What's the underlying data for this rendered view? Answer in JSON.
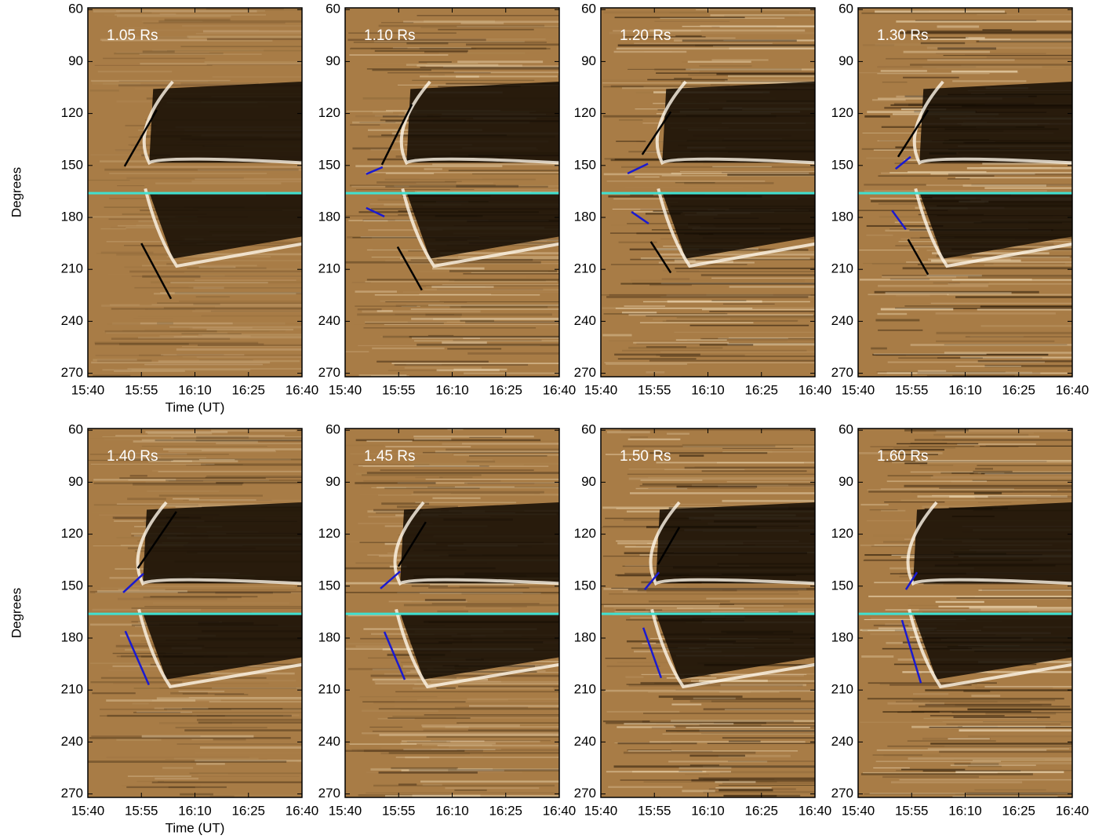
{
  "chart_data": [
    {
      "type": "image",
      "label": "1.05 Rs",
      "ylabel": "Degrees",
      "xlabel": "Time (UT)",
      "xlim": [
        0,
        60
      ],
      "ylim": [
        59,
        272
      ],
      "xticks": [
        {
          "value": 0,
          "label": "15:40"
        },
        {
          "value": 15,
          "label": "15:55"
        },
        {
          "value": 30,
          "label": "16:10"
        },
        {
          "value": 45,
          "label": "16:25"
        },
        {
          "value": 60,
          "label": "16:40"
        }
      ],
      "yticks": [
        60,
        90,
        120,
        150,
        180,
        210,
        240,
        270
      ],
      "reference": 166,
      "reference_color": "#40e0d0",
      "segments": [
        {
          "color": "#000000",
          "x": [
            10.3,
            19.3
          ],
          "values": [
            150.5,
            118
          ]
        },
        {
          "color": "#000000",
          "x": [
            15,
            23.3
          ],
          "values": [
            195,
            227
          ]
        }
      ]
    },
    {
      "type": "image",
      "label": "1.10 Rs",
      "xlim": [
        0,
        60
      ],
      "ylim": [
        59,
        272
      ],
      "xticks": [
        {
          "value": 0,
          "label": "15:40"
        },
        {
          "value": 15,
          "label": "15:55"
        },
        {
          "value": 30,
          "label": "16:10"
        },
        {
          "value": 45,
          "label": "16:25"
        },
        {
          "value": 60,
          "label": "16:40"
        }
      ],
      "yticks": [
        60,
        90,
        120,
        150,
        180,
        210,
        240,
        270
      ],
      "reference": 166,
      "reference_color": "#40e0d0",
      "segments": [
        {
          "color": "#000000",
          "x": [
            10.3,
            18.7
          ],
          "values": [
            149.6,
            114.7
          ]
        },
        {
          "color": "#1a1ad0",
          "x": [
            5.9,
            10.5
          ],
          "values": [
            155,
            151
          ]
        },
        {
          "color": "#1a1ad0",
          "x": [
            5.9,
            11
          ],
          "values": [
            174.5,
            179.5
          ]
        },
        {
          "color": "#000000",
          "x": [
            14.7,
            21.5
          ],
          "values": [
            197,
            222
          ]
        }
      ]
    },
    {
      "type": "image",
      "label": "1.20 Rs",
      "xlim": [
        0,
        60
      ],
      "ylim": [
        59,
        272
      ],
      "xticks": [
        {
          "value": 0,
          "label": "15:40"
        },
        {
          "value": 15,
          "label": "15:55"
        },
        {
          "value": 30,
          "label": "16:10"
        },
        {
          "value": 45,
          "label": "16:25"
        },
        {
          "value": 60,
          "label": "16:40"
        }
      ],
      "yticks": [
        60,
        90,
        120,
        150,
        180,
        210,
        240,
        270
      ],
      "reference": 166,
      "reference_color": "#40e0d0",
      "segments": [
        {
          "color": "#000000",
          "x": [
            11.6,
            19.6
          ],
          "values": [
            143.7,
            119
          ]
        },
        {
          "color": "#1a1ad0",
          "x": [
            7.5,
            13.2
          ],
          "values": [
            154.6,
            149
          ]
        },
        {
          "color": "#1a1ad0",
          "x": [
            8.6,
            13.4
          ],
          "values": [
            176.8,
            183.6
          ]
        },
        {
          "color": "#000000",
          "x": [
            14,
            19.6
          ],
          "values": [
            194,
            212
          ]
        }
      ]
    },
    {
      "type": "image",
      "label": "1.30 Rs",
      "xlim": [
        0,
        60
      ],
      "ylim": [
        59,
        272
      ],
      "xticks": [
        {
          "value": 0,
          "label": "15:40"
        },
        {
          "value": 15,
          "label": "15:55"
        },
        {
          "value": 30,
          "label": "16:10"
        },
        {
          "value": 45,
          "label": "16:25"
        },
        {
          "value": 60,
          "label": "16:40"
        }
      ],
      "yticks": [
        60,
        90,
        120,
        150,
        180,
        210,
        240,
        270
      ],
      "reference": 166,
      "reference_color": "#40e0d0",
      "segments": [
        {
          "color": "#000000",
          "x": [
            11.2,
            19.6
          ],
          "values": [
            145,
            118
          ]
        },
        {
          "color": "#1a1ad0",
          "x": [
            10.5,
            14.7
          ],
          "values": [
            152,
            145
          ]
        },
        {
          "color": "#1a1ad0",
          "x": [
            9.5,
            13.4
          ],
          "values": [
            176,
            187
          ]
        },
        {
          "color": "#000000",
          "x": [
            14,
            19.6
          ],
          "values": [
            192.7,
            213
          ]
        }
      ]
    },
    {
      "type": "image",
      "label": "1.40 Rs",
      "ylabel": "Degrees",
      "xlabel": "Time (UT)",
      "xlim": [
        0,
        60
      ],
      "ylim": [
        59,
        272
      ],
      "xticks": [
        {
          "value": 0,
          "label": "15:40"
        },
        {
          "value": 15,
          "label": "15:55"
        },
        {
          "value": 30,
          "label": "16:10"
        },
        {
          "value": 45,
          "label": "16:25"
        },
        {
          "value": 60,
          "label": "16:40"
        }
      ],
      "yticks": [
        60,
        90,
        120,
        150,
        180,
        210,
        240,
        270
      ],
      "reference": 166,
      "reference_color": "#40e0d0",
      "segments": [
        {
          "color": "#000000",
          "x": [
            14,
            24.8
          ],
          "values": [
            139.7,
            107
          ]
        },
        {
          "color": "#1a1ad0",
          "x": [
            9.9,
            15.6
          ],
          "values": [
            153.7,
            142.8
          ]
        },
        {
          "color": "#1a1ad0",
          "x": [
            10.5,
            17.1
          ],
          "values": [
            176,
            207
          ]
        }
      ]
    },
    {
      "type": "image",
      "label": "1.45 Rs",
      "xlim": [
        0,
        60
      ],
      "ylim": [
        59,
        272
      ],
      "xticks": [
        {
          "value": 0,
          "label": "15:40"
        },
        {
          "value": 15,
          "label": "15:55"
        },
        {
          "value": 30,
          "label": "16:10"
        },
        {
          "value": 45,
          "label": "16:25"
        },
        {
          "value": 60,
          "label": "16:40"
        }
      ],
      "yticks": [
        60,
        90,
        120,
        150,
        180,
        210,
        240,
        270
      ],
      "reference": 166,
      "reference_color": "#40e0d0",
      "segments": [
        {
          "color": "#000000",
          "x": [
            14.9,
            22.6
          ],
          "values": [
            138.7,
            113
          ]
        },
        {
          "color": "#1a1ad0",
          "x": [
            9.9,
            15.4
          ],
          "values": [
            151.4,
            141.5
          ]
        },
        {
          "color": "#1a1ad0",
          "x": [
            11,
            16.7
          ],
          "values": [
            176.4,
            204
          ]
        }
      ]
    },
    {
      "type": "image",
      "label": "1.50 Rs",
      "xlim": [
        0,
        60
      ],
      "ylim": [
        59,
        272
      ],
      "xticks": [
        {
          "value": 0,
          "label": "15:40"
        },
        {
          "value": 15,
          "label": "15:55"
        },
        {
          "value": 30,
          "label": "16:10"
        },
        {
          "value": 45,
          "label": "16:25"
        },
        {
          "value": 60,
          "label": "16:40"
        }
      ],
      "yticks": [
        60,
        90,
        120,
        150,
        180,
        210,
        240,
        270
      ],
      "reference": 166,
      "reference_color": "#40e0d0",
      "segments": [
        {
          "color": "#000000",
          "x": [
            16,
            22
          ],
          "values": [
            137.4,
            116
          ]
        },
        {
          "color": "#1a1ad0",
          "x": [
            12.3,
            16.3
          ],
          "values": [
            152,
            142
          ]
        },
        {
          "color": "#1a1ad0",
          "x": [
            11.9,
            16.9
          ],
          "values": [
            174,
            203
          ]
        }
      ]
    },
    {
      "type": "image",
      "label": "1.60 Rs",
      "xlim": [
        0,
        60
      ],
      "ylim": [
        59,
        272
      ],
      "xticks": [
        {
          "value": 0,
          "label": "15:40"
        },
        {
          "value": 15,
          "label": "15:55"
        },
        {
          "value": 30,
          "label": "16:10"
        },
        {
          "value": 45,
          "label": "16:25"
        },
        {
          "value": 60,
          "label": "16:40"
        }
      ],
      "yticks": [
        60,
        90,
        120,
        150,
        180,
        210,
        240,
        270
      ],
      "reference": 166,
      "reference_color": "#40e0d0",
      "segments": [
        {
          "color": "#1a1ad0",
          "x": [
            13.4,
            16.5
          ],
          "values": [
            152,
            142
          ]
        },
        {
          "color": "#1a1ad0",
          "x": [
            12.3,
            17.6
          ],
          "values": [
            169.6,
            206
          ]
        }
      ]
    }
  ]
}
